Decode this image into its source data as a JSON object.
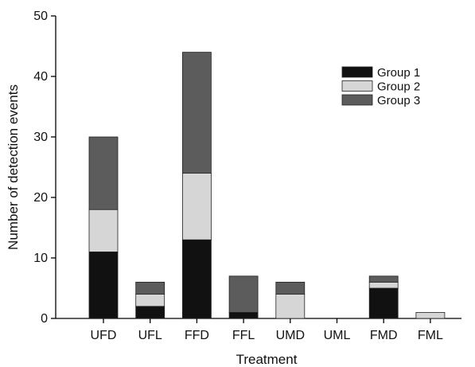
{
  "chart_data": {
    "type": "bar",
    "stacked": true,
    "title": "",
    "xlabel": "Treatment",
    "ylabel": "Number of detection events",
    "ylim": [
      0,
      50
    ],
    "yticks": [
      0,
      10,
      20,
      30,
      40,
      50
    ],
    "grid": false,
    "legend_position": "top-right",
    "categories": [
      "UFD",
      "UFL",
      "FFD",
      "FFL",
      "UMD",
      "UML",
      "FMD",
      "FML"
    ],
    "series": [
      {
        "name": "Group 1",
        "color": "#111111",
        "values": [
          11,
          2,
          13,
          1,
          0,
          0,
          5,
          0
        ]
      },
      {
        "name": "Group 2",
        "color": "#d6d6d6",
        "values": [
          7,
          2,
          11,
          0,
          4,
          0,
          1,
          1
        ]
      },
      {
        "name": "Group 3",
        "color": "#5c5c5c",
        "values": [
          12,
          2,
          20,
          6,
          2,
          0,
          1,
          0
        ]
      }
    ]
  }
}
